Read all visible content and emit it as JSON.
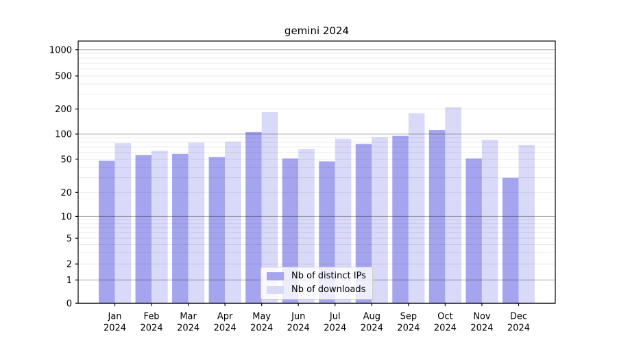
{
  "chart_data": {
    "type": "bar",
    "title": "gemini 2024",
    "categories": [
      "Jan 2024",
      "Feb 2024",
      "Mar 2024",
      "Apr 2024",
      "May 2024",
      "Jun 2024",
      "Jul 2024",
      "Aug 2024",
      "Sep 2024",
      "Oct 2024",
      "Nov 2024",
      "Dec 2024"
    ],
    "series": [
      {
        "name": "Nb of distinct IPs",
        "color": "#a5a5ef",
        "values": [
          48,
          56,
          58,
          53,
          106,
          51,
          47,
          76,
          95,
          112,
          51,
          30
        ]
      },
      {
        "name": "Nb of downloads",
        "color": "#d9d9f8",
        "values": [
          78,
          63,
          79,
          81,
          183,
          66,
          88,
          92,
          178,
          210,
          85,
          74
        ]
      }
    ],
    "yscale": "symlog",
    "yticks": [
      0,
      1,
      2,
      5,
      10,
      20,
      50,
      100,
      200,
      500,
      1000
    ],
    "ylim": [
      0,
      1400
    ],
    "xlabel": "",
    "ylabel": "",
    "grid": true,
    "legend_position": "lower-center"
  },
  "colors": {
    "background": "#ffffff",
    "axis": "#000000",
    "grid_major": "rgba(0,0,0,0.30)",
    "grid_minor": "rgba(0,0,0,0.08)",
    "legend_bg": "rgba(255,255,255,0.8)",
    "legend_border": "#cccccc",
    "text": "#000000"
  }
}
